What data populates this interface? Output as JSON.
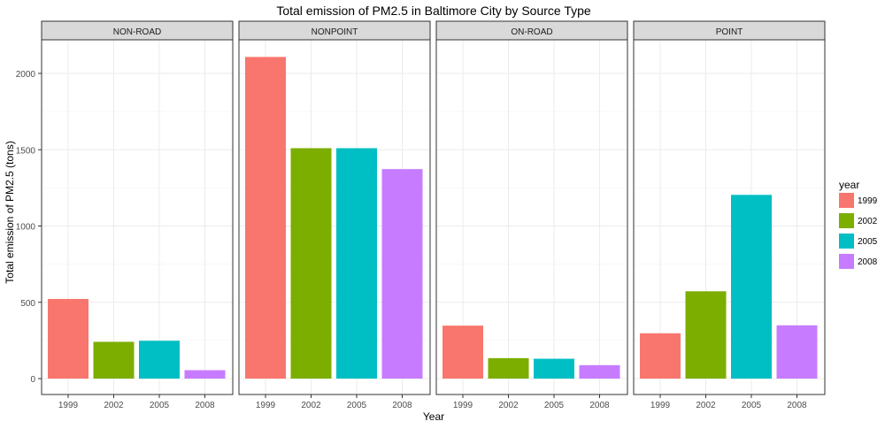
{
  "chart_data": {
    "type": "bar",
    "title": "Total emission of PM2.5 in Baltimore City by Source Type",
    "xlabel": "Year",
    "ylabel": "Total emission of PM2.5 (tons)",
    "ylim": [
      0,
      2200
    ],
    "yticks": [
      0,
      500,
      1000,
      1500,
      2000
    ],
    "categories": [
      "1999",
      "2002",
      "2005",
      "2008"
    ],
    "legend": {
      "title": "year",
      "position": "right",
      "entries": [
        "1999",
        "2002",
        "2005",
        "2008"
      ]
    },
    "colors": {
      "1999": "#F8766D",
      "2002": "#7CAE00",
      "2005": "#00BFC4",
      "2008": "#C77CFF"
    },
    "grid": true,
    "facets": [
      {
        "name": "NON-ROAD",
        "values": [
          522,
          241,
          248,
          55
        ]
      },
      {
        "name": "NONPOINT",
        "values": [
          2108,
          1510,
          1510,
          1373
        ]
      },
      {
        "name": "ON-ROAD",
        "values": [
          347,
          134,
          130,
          88
        ]
      },
      {
        "name": "POINT",
        "values": [
          297,
          572,
          1204,
          349
        ]
      }
    ]
  }
}
